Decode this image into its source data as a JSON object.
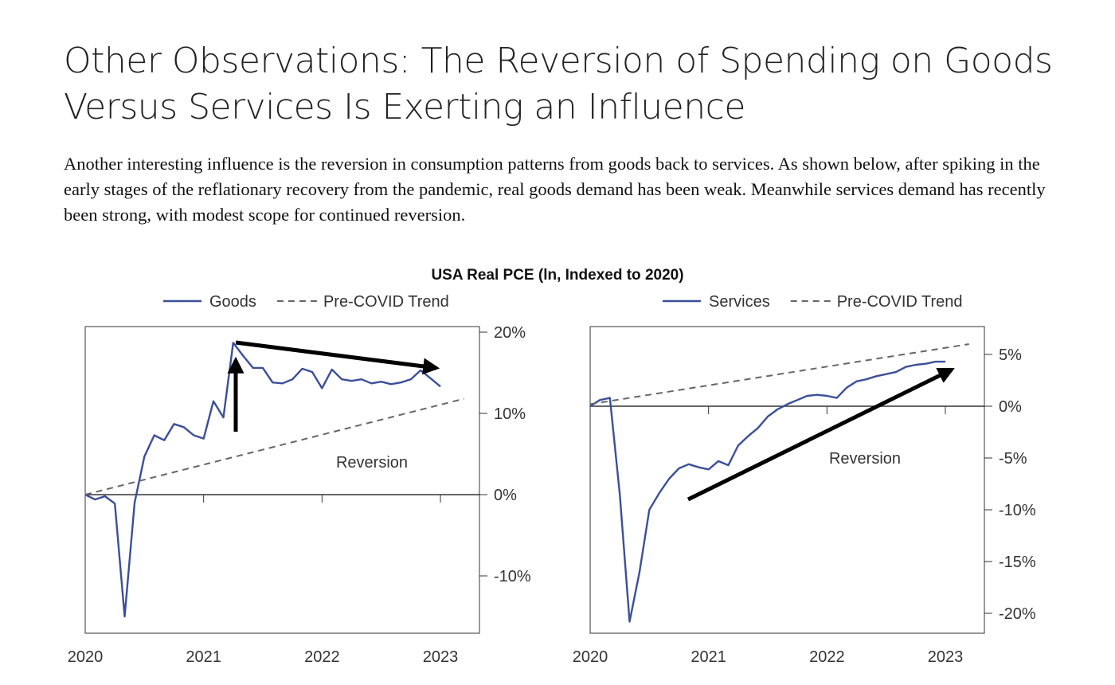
{
  "title": "Other Observations: The Reversion of Spending on Goods Versus Services Is Exerting an Influence",
  "intro": "Another interesting influence is the reversion in consumption patterns from goods back to services. As shown below, after spiking in the early stages of the reflationary recovery from the pandemic, real goods demand has been weak. Meanwhile services demand has recently been strong, with modest scope for continued reversion.",
  "chart_suptitle": "USA Real PCE (ln, Indexed to 2020)",
  "colors": {
    "series": "#3b4f9a",
    "trend": "#666666",
    "axis": "#333333",
    "arrow": "#000000"
  },
  "chart_data": [
    {
      "type": "line",
      "legend": [
        "Goods",
        "Pre-COVID Trend"
      ],
      "annotation": "Reversion",
      "x_ticks": [
        "2020",
        "2021",
        "2022",
        "2023"
      ],
      "y_ticks": [
        "20%",
        "10%",
        "0%",
        "-10%"
      ],
      "y_tick_values": [
        20,
        10,
        0,
        -10
      ],
      "ylim": [
        -17,
        20.5
      ],
      "xlim": [
        2020.0,
        2023.33
      ],
      "y_axis_position": "right",
      "series": [
        {
          "name": "Goods",
          "style": "solid",
          "x": [
            2020.0,
            2020.083,
            2020.167,
            2020.25,
            2020.333,
            2020.417,
            2020.5,
            2020.583,
            2020.667,
            2020.75,
            2020.833,
            2020.917,
            2021.0,
            2021.083,
            2021.167,
            2021.25,
            2021.333,
            2021.417,
            2021.5,
            2021.583,
            2021.667,
            2021.75,
            2021.833,
            2021.917,
            2022.0,
            2022.083,
            2022.167,
            2022.25,
            2022.333,
            2022.417,
            2022.5,
            2022.583,
            2022.667,
            2022.75,
            2022.833,
            2022.917,
            2023.0
          ],
          "values": [
            0,
            -0.6,
            -0.2,
            -1.1,
            -15.0,
            -1.0,
            4.7,
            7.3,
            6.7,
            8.7,
            8.3,
            7.3,
            6.9,
            11.5,
            9.5,
            18.7,
            17.1,
            15.6,
            15.6,
            13.8,
            13.7,
            14.2,
            15.5,
            15.1,
            13.1,
            15.4,
            14.2,
            14.0,
            14.2,
            13.7,
            13.9,
            13.6,
            13.8,
            14.2,
            15.3,
            14.3,
            13.3
          ]
        },
        {
          "name": "Pre-COVID Trend",
          "style": "dashed",
          "x": [
            2020.0,
            2023.2
          ],
          "values": [
            0,
            11.8
          ]
        }
      ]
    },
    {
      "type": "line",
      "legend": [
        "Services",
        "Pre-COVID Trend"
      ],
      "annotation": "Reversion",
      "x_ticks": [
        "2020",
        "2021",
        "2022",
        "2023"
      ],
      "y_ticks": [
        "5%",
        "0%",
        "-5%",
        "-10%",
        "-15%",
        "-20%"
      ],
      "y_tick_values": [
        5,
        0,
        -5,
        -10,
        -15,
        -20
      ],
      "ylim": [
        -21.6,
        7.6
      ],
      "xlim": [
        2020.0,
        2023.33
      ],
      "y_axis_position": "right",
      "series": [
        {
          "name": "Services",
          "style": "solid",
          "x": [
            2020.0,
            2020.083,
            2020.167,
            2020.25,
            2020.333,
            2020.417,
            2020.5,
            2020.583,
            2020.667,
            2020.75,
            2020.833,
            2020.917,
            2021.0,
            2021.083,
            2021.167,
            2021.25,
            2021.333,
            2021.417,
            2021.5,
            2021.583,
            2021.667,
            2021.75,
            2021.833,
            2021.917,
            2022.0,
            2022.083,
            2022.167,
            2022.25,
            2022.333,
            2022.417,
            2022.5,
            2022.583,
            2022.667,
            2022.75,
            2022.833,
            2022.917,
            2023.0
          ],
          "values": [
            0,
            0.6,
            0.8,
            -8.5,
            -20.8,
            -16.0,
            -10.0,
            -8.4,
            -7.0,
            -6.0,
            -5.6,
            -5.9,
            -6.1,
            -5.3,
            -5.7,
            -3.8,
            -2.9,
            -2.1,
            -1.0,
            -0.3,
            0.2,
            0.6,
            1.0,
            1.1,
            1.0,
            0.8,
            1.8,
            2.4,
            2.6,
            2.9,
            3.1,
            3.3,
            3.8,
            4.0,
            4.1,
            4.3,
            4.3
          ]
        },
        {
          "name": "Pre-COVID Trend",
          "style": "dashed",
          "x": [
            2020.0,
            2023.2
          ],
          "values": [
            0.2,
            6.0
          ]
        }
      ]
    }
  ]
}
